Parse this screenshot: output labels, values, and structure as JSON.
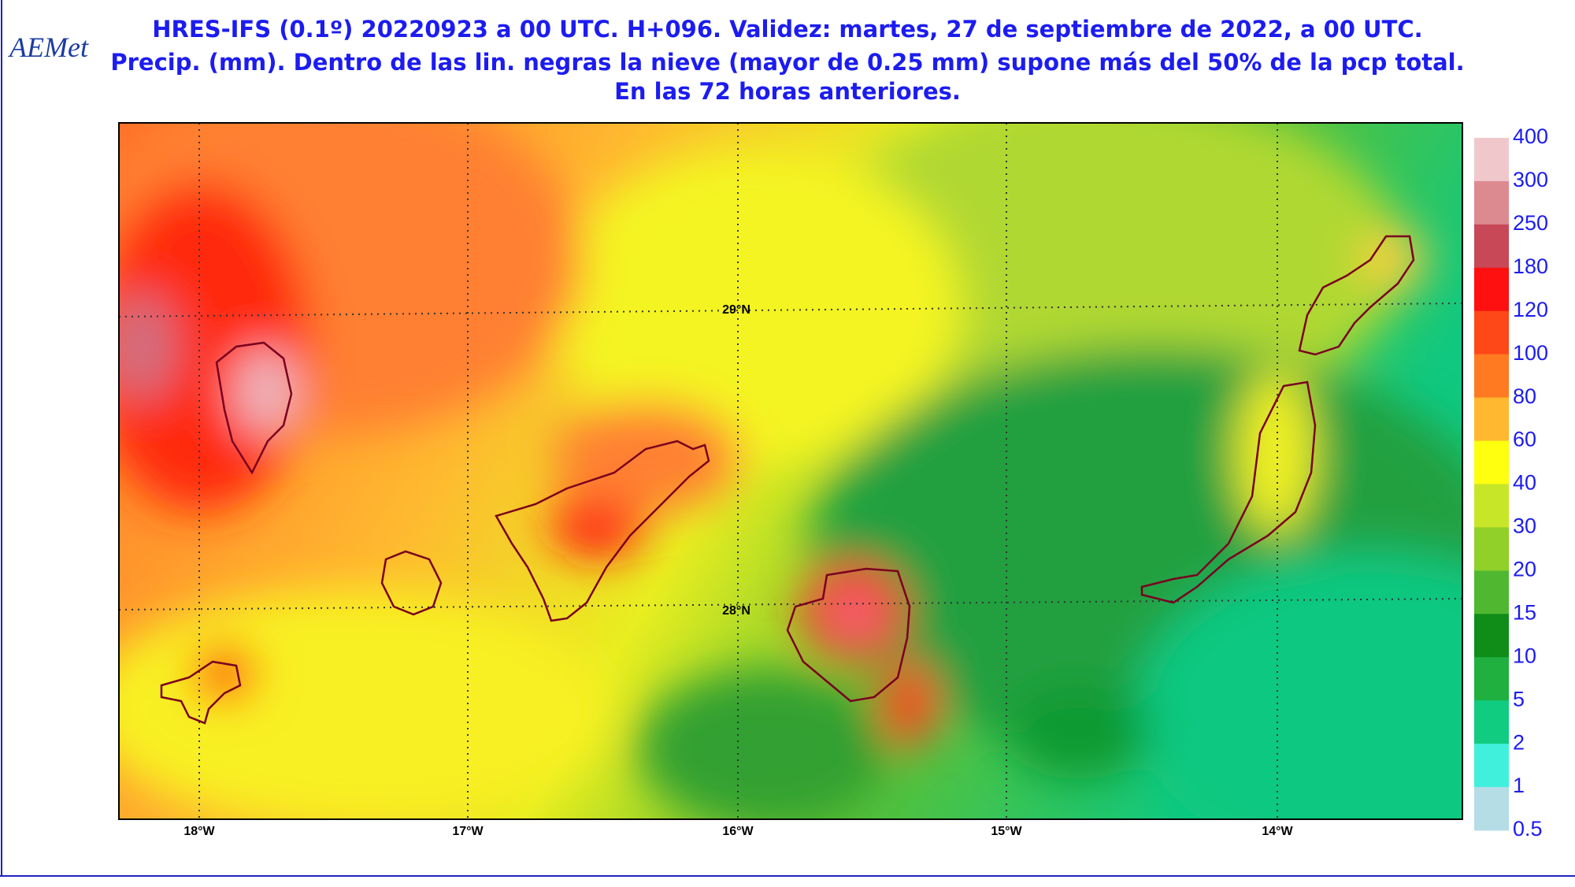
{
  "header": {
    "logo": "AEMet",
    "title_lines": [
      "HRES-IFS (0.1º) 20220923 a 00 UTC.  H+096. Validez: martes, 27 de septiembre de 2022,  a  00 UTC.",
      "Precip. (mm). Dentro de las lin. negras la nieve (mayor de 0.25 mm) supone más del 50% de la pcp total.",
      "En las 72 horas anteriores."
    ]
  },
  "map": {
    "lon_labels": [
      "18°W",
      "17°W",
      "16°W",
      "15°W",
      "14°W"
    ],
    "lat_labels": [
      "29°N",
      "28°N"
    ]
  },
  "legend": {
    "levels": [
      400,
      300,
      250,
      180,
      120,
      100,
      80,
      60,
      40,
      30,
      20,
      15,
      10,
      5,
      2,
      1,
      0.5
    ],
    "colors": [
      "#f0c8cc",
      "#dc8a90",
      "#c84858",
      "#ff1010",
      "#ff4818",
      "#ff7a20",
      "#ffb830",
      "#ffff10",
      "#c8e628",
      "#90d028",
      "#50b830",
      "#108c18",
      "#20b040",
      "#10cc80",
      "#40f0dc",
      "#b4dde6"
    ]
  }
}
